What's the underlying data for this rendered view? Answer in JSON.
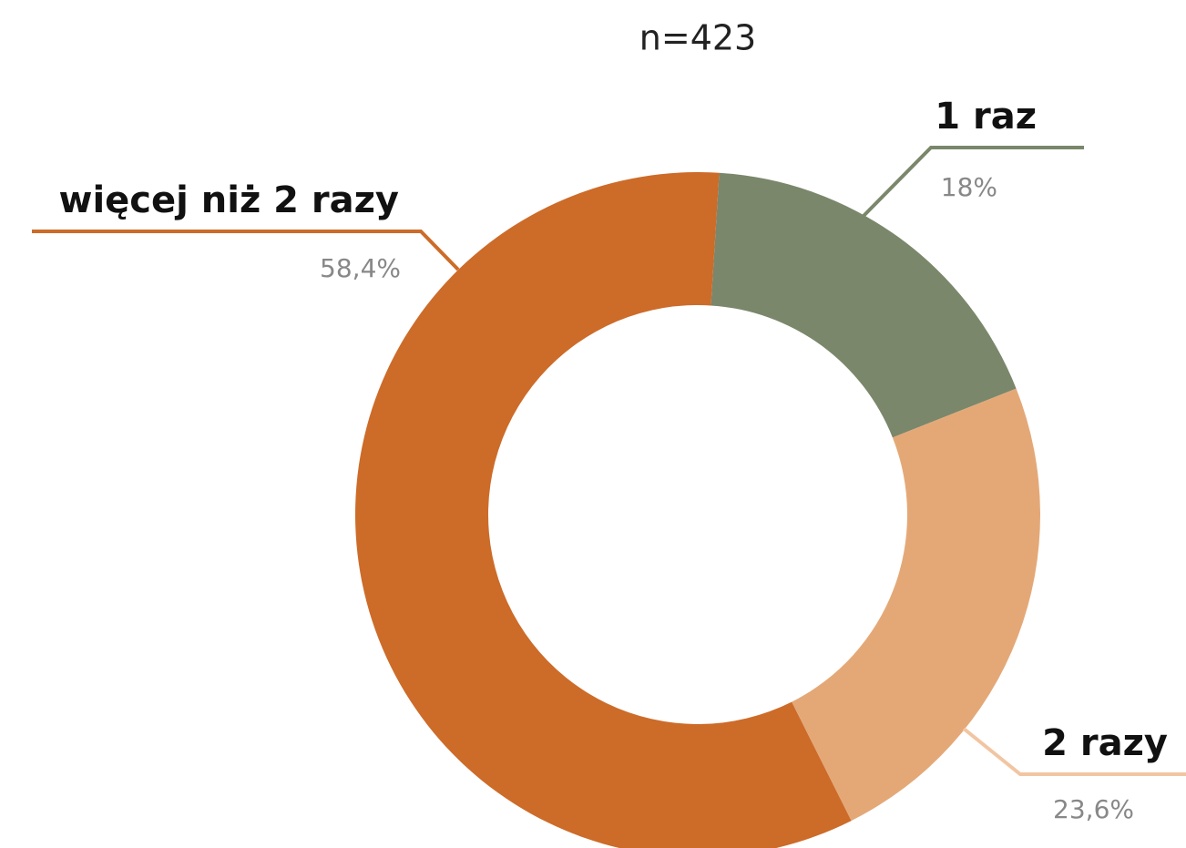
{
  "chart_data": {
    "type": "donut",
    "title": "n=423",
    "categories": [
      "1 raz",
      "2 razy",
      "więcej niż 2 razy"
    ],
    "values": [
      18,
      23.6,
      58.4
    ],
    "value_labels": [
      "18%",
      "23,6%",
      "58,4%"
    ],
    "colors": [
      "#7a876b",
      "#e4a877",
      "#cd6b29"
    ]
  }
}
